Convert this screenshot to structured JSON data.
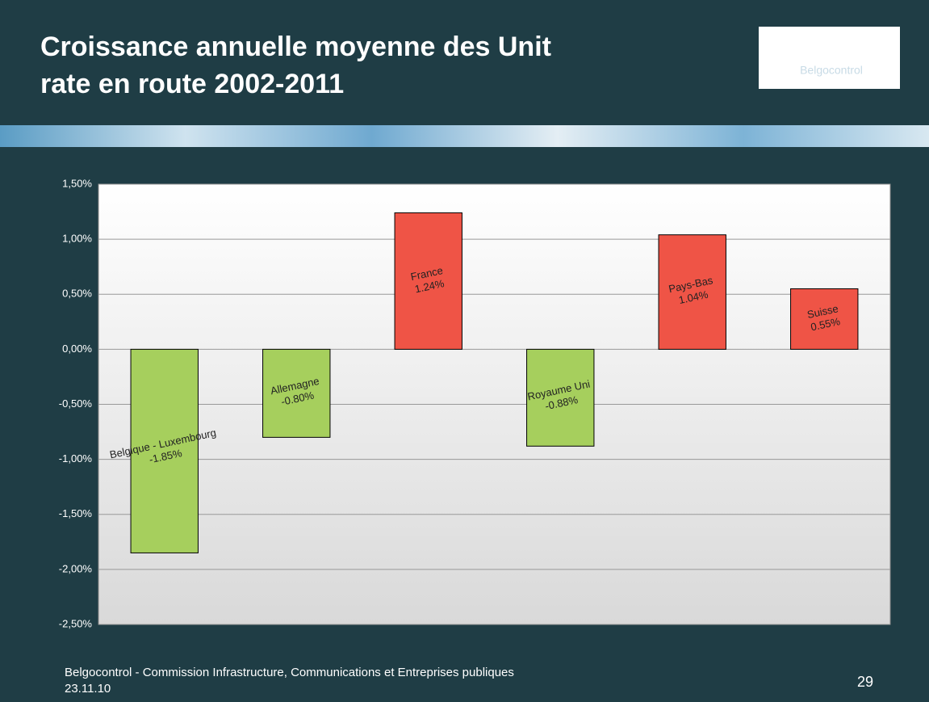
{
  "slide": {
    "logo": "Belgocontrol",
    "footer": "Belgocontrol - Commission Infrastructure, Communications et Entreprises publiques",
    "date": "23.11.10",
    "page_number": "29"
  },
  "chart_data": {
    "type": "bar",
    "title": "Croissance annuelle moyenne des Unit rate en route 2002-2011",
    "categories": [
      "Belgique - Luxembourg",
      "Allemagne",
      "France",
      "Royaume Uni",
      "Pays-Bas",
      "Suisse"
    ],
    "values": [
      -1.85,
      -0.8,
      1.24,
      -0.88,
      1.04,
      0.55
    ],
    "value_labels": [
      "-1.85%",
      "-0.80%",
      "1.24%",
      "-0.88%",
      "1.04%",
      "0.55%"
    ],
    "colors": [
      "#a6cf5d",
      "#a6cf5d",
      "#ef5446",
      "#a6cf5d",
      "#ef5446",
      "#ef5446"
    ],
    "ylim": [
      -2.5,
      1.5
    ],
    "yticks": [
      {
        "value": -2.5,
        "label": "-2,50%"
      },
      {
        "value": -2,
        "label": "-2,00%"
      },
      {
        "value": -1.5,
        "label": "-1,50%"
      },
      {
        "value": -1,
        "label": "-1,00%"
      },
      {
        "value": -0.5,
        "label": "-0,50%"
      },
      {
        "value": 0,
        "label": "0,00%"
      },
      {
        "value": 0.5,
        "label": "0,50%"
      },
      {
        "value": 1,
        "label": "1,00%"
      },
      {
        "value": 1.5,
        "label": "1,50%"
      }
    ],
    "grid": true
  }
}
